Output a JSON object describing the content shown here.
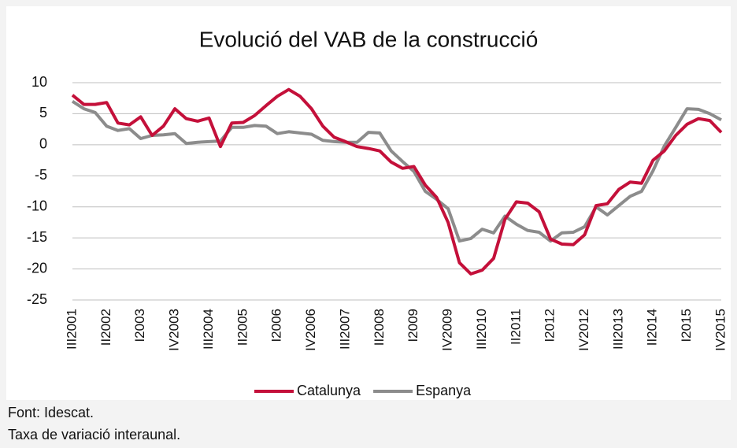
{
  "chart_data": {
    "type": "line",
    "title": "Evolució del VAB de la construcció",
    "categories": [
      "III2001",
      null,
      null,
      "II2002",
      null,
      null,
      "I2003",
      null,
      null,
      "IV2003",
      null,
      null,
      "III2004",
      null,
      null,
      "II2005",
      null,
      null,
      "I2006",
      null,
      null,
      "IV2006",
      null,
      null,
      "III2007",
      null,
      null,
      "II2008",
      null,
      null,
      "I2009",
      null,
      null,
      "IV2009",
      null,
      null,
      "III2010",
      null,
      null,
      "II2011",
      null,
      null,
      "I2012",
      null,
      null,
      "IV2012",
      null,
      null,
      "III2013",
      null,
      null,
      "II2014",
      null,
      null,
      "I2015",
      null,
      null,
      "IV2015"
    ],
    "series": [
      {
        "name": "Catalunya",
        "color": "#c4103a",
        "values": [
          8.0,
          6.5,
          6.5,
          6.8,
          3.5,
          3.2,
          4.5,
          1.5,
          3.0,
          5.8,
          4.2,
          3.8,
          4.3,
          -0.3,
          3.5,
          3.6,
          4.7,
          6.3,
          7.8,
          8.9,
          7.8,
          5.8,
          3.0,
          1.2,
          0.5,
          -0.3,
          -0.6,
          -1.0,
          -2.8,
          -3.8,
          -3.5,
          -6.5,
          -8.5,
          -12.5,
          -19.0,
          -20.8,
          -20.2,
          -18.3,
          -12.0,
          -9.2,
          -9.4,
          -10.8,
          -15.2,
          -16.0,
          -16.1,
          -14.5,
          -9.8,
          -9.5,
          -7.2,
          -6.0,
          -6.2,
          -2.5,
          -1.0,
          1.5,
          3.3,
          4.2,
          3.9,
          2.0
        ]
      },
      {
        "name": "Espanya",
        "color": "#8c8c8c",
        "values": [
          7.0,
          5.8,
          5.2,
          3.0,
          2.3,
          2.6,
          1.0,
          1.5,
          1.6,
          1.8,
          0.2,
          0.4,
          0.5,
          0.6,
          2.8,
          2.8,
          3.1,
          3.0,
          1.8,
          2.1,
          1.9,
          1.7,
          0.7,
          0.5,
          0.4,
          0.4,
          2.0,
          1.9,
          -1.0,
          -2.7,
          -4.3,
          -7.5,
          -8.8,
          -10.3,
          -15.5,
          -15.1,
          -13.6,
          -14.2,
          -11.5,
          -12.8,
          -13.8,
          -14.1,
          -15.5,
          -14.2,
          -14.1,
          -13.2,
          -10.0,
          -11.3,
          -9.8,
          -8.3,
          -7.5,
          -4.2,
          -0.2,
          2.8,
          5.8,
          5.7,
          5.0,
          4.0
        ]
      }
    ],
    "ylim": [
      -25,
      10
    ],
    "yticks": [
      10,
      5,
      0,
      -5,
      -10,
      -15,
      -20,
      -25
    ],
    "grid": true,
    "legend": "bottom",
    "notes": [
      "Font: Idescat.",
      "Taxa de variació interaunal."
    ]
  }
}
